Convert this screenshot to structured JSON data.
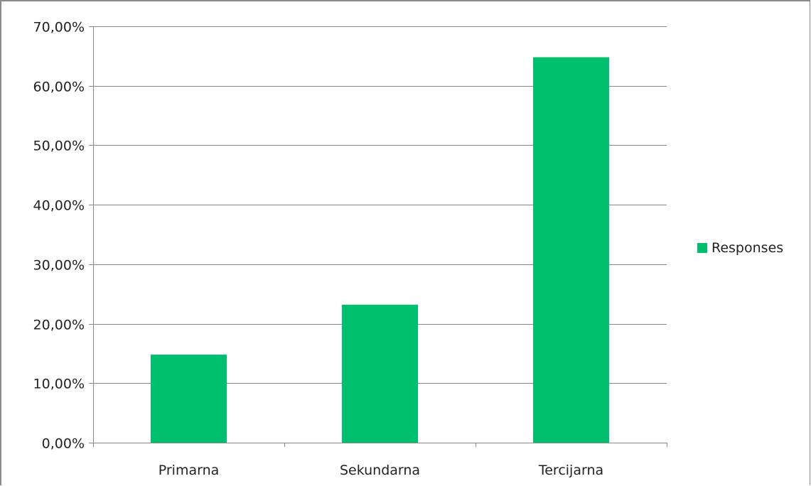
{
  "chart_data": {
    "type": "bar",
    "categories": [
      "Primarna",
      "Sekundarna",
      "Tercijarna"
    ],
    "series": [
      {
        "name": "Responses",
        "values": [
          14.8,
          23.2,
          64.8
        ],
        "color": "#00bf6f"
      }
    ],
    "y_ticks": [
      "0,00%",
      "10,00%",
      "20,00%",
      "30,00%",
      "40,00%",
      "50,00%",
      "60,00%",
      "70,00%"
    ],
    "ylim": [
      0,
      70
    ],
    "y_unit": "percent",
    "grid": true,
    "legend_position": "right",
    "colors": {
      "bar": "#00bf6f",
      "gridline": "#888888",
      "axis": "#888888",
      "frame": "#8a8a8a"
    }
  }
}
